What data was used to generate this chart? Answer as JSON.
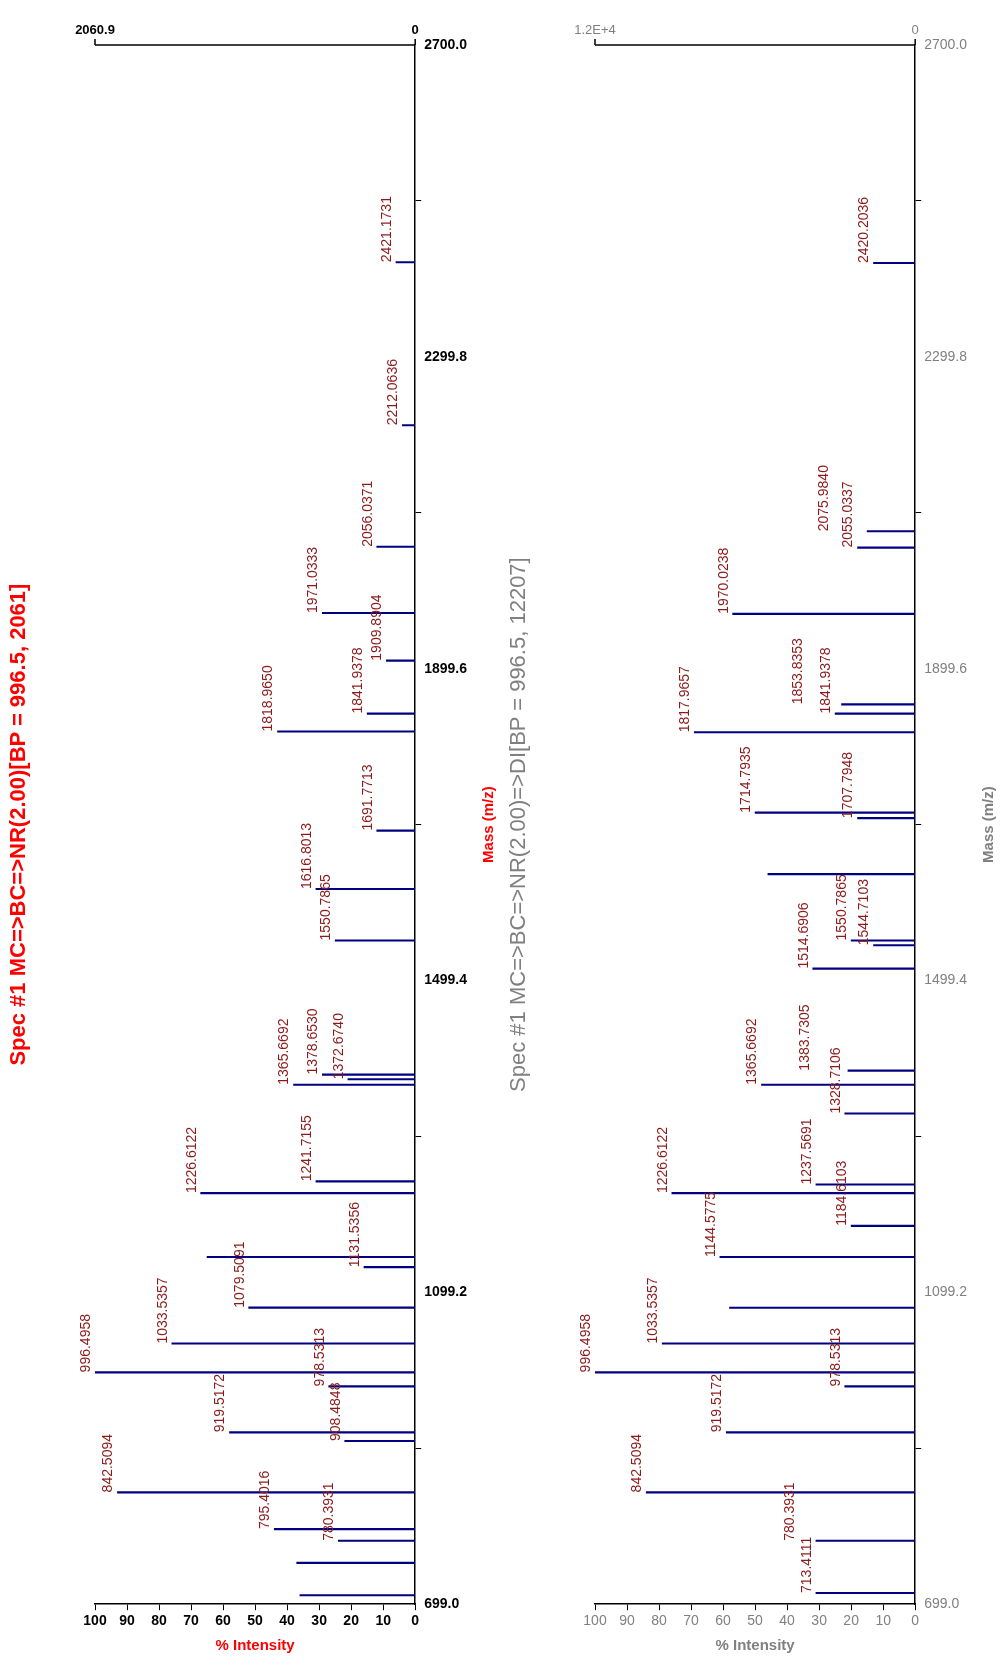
{
  "chart_data": [
    {
      "type": "bar",
      "orientation": "horizontal",
      "title": "Spec #1 MC=>BC=>NR(2.00)[BP = 996.5, 2061]",
      "xlabel": "% Intensity",
      "ylabel": "Mass (m/z)",
      "x": [
        710.5,
        752,
        780.3931,
        795.4016,
        842.5094,
        908.4848,
        919.5172,
        978.5313,
        996.4958,
        1033.5357,
        1079.5091,
        1131.5356,
        1144.6,
        1226.6122,
        1241.7155,
        1365.6692,
        1372.674,
        1378.653,
        1550.7865,
        1616.8013,
        1691.7713,
        1818.965,
        1841.9378,
        1909.8904,
        1971.0333,
        2056.0371,
        2212.0636,
        2421.1731
      ],
      "values": [
        36,
        37,
        24,
        44,
        93,
        22,
        58,
        27,
        100,
        76,
        52,
        16,
        65,
        67,
        31,
        38,
        21,
        29,
        25,
        31,
        12,
        43,
        15,
        9,
        29,
        12,
        4,
        6
      ],
      "color": "#000080",
      "annotations": [
        {
          "text": "780.3931",
          "x": 24,
          "y": 780.3931
        },
        {
          "text": "795.4016",
          "x": 44,
          "y": 795.4016
        },
        {
          "text": "842.5094",
          "x": 93,
          "y": 842.5094
        },
        {
          "text": "908.4848",
          "x": 22,
          "y": 908.4848
        },
        {
          "text": "919.5172",
          "x": 58,
          "y": 919.5172
        },
        {
          "text": "978.5313",
          "x": 27,
          "y": 978.5313
        },
        {
          "text": "996.4958",
          "x": 100,
          "y": 996.4958
        },
        {
          "text": "1033.5357",
          "x": 76,
          "y": 1033.5357
        },
        {
          "text": "1079.5091",
          "x": 52,
          "y": 1079.5091
        },
        {
          "text": "1131.5356",
          "x": 16,
          "y": 1131.5356
        },
        {
          "text": "1226.6122",
          "x": 67,
          "y": 1226.6122
        },
        {
          "text": "1241.7155",
          "x": 31,
          "y": 1241.7155
        },
        {
          "text": "1365.6692",
          "x": 38,
          "y": 1365.6692
        },
        {
          "text": "1372.6740",
          "x": 21,
          "y": 1372.674
        },
        {
          "text": "1378.6530",
          "x": 29,
          "y": 1378.653
        },
        {
          "text": "1550.7865",
          "x": 25,
          "y": 1550.7865
        },
        {
          "text": "1616.8013",
          "x": 31,
          "y": 1616.8013
        },
        {
          "text": "1691.7713",
          "x": 12,
          "y": 1691.7713
        },
        {
          "text": "1818.9650",
          "x": 43,
          "y": 1818.965
        },
        {
          "text": "1841.9378",
          "x": 15,
          "y": 1841.9378
        },
        {
          "text": "1909.8904",
          "x": 9,
          "y": 1909.8904
        },
        {
          "text": "1971.0333",
          "x": 29,
          "y": 1971.0333
        },
        {
          "text": "2056.0371",
          "x": 12,
          "y": 2056.0371
        },
        {
          "text": "2212.0636",
          "x": 4,
          "y": 2212.0636
        },
        {
          "text": "2421.1731",
          "x": 6,
          "y": 2421.1731
        }
      ],
      "xlim": [
        100,
        0
      ],
      "xticks": [
        0,
        10,
        20,
        30,
        40,
        50,
        60,
        70,
        80,
        90,
        100
      ],
      "ylim": [
        699,
        2700
      ],
      "yticks": [
        {
          "value": 699,
          "label": "699.0"
        },
        {
          "value": 1099.2,
          "label": "1099.2"
        },
        {
          "value": 1499.4,
          "label": "1499.4"
        },
        {
          "value": 1899.6,
          "label": "1899.6"
        },
        {
          "value": 2299.8,
          "label": "2299.8"
        },
        {
          "value": 2700,
          "label": "2700.0"
        }
      ],
      "x2lim": [
        2060.9,
        0
      ],
      "x2ticks": [
        {
          "value": 2060.9,
          "label": "2060.9"
        },
        0
      ],
      "grid": false,
      "legend": false
    },
    {
      "type": "bar",
      "orientation": "horizontal",
      "title": "Spec #1 MC=>BC=>NR(2.00)=>DI[BP = 996.5, 12207]",
      "xlabel": "% Intensity",
      "ylabel": "Mass (m/z)",
      "x": [
        713.4111,
        780.3931,
        842.5094,
        919.5172,
        978.5313,
        996.4958,
        1033.5357,
        1079.5,
        1144.5775,
        1184.6103,
        1226.6122,
        1237.5691,
        1328.7106,
        1365.6692,
        1383.7305,
        1514.6906,
        1544.7103,
        1550.7865,
        1636,
        1707.7948,
        1714.7935,
        1817.9657,
        1841.9378,
        1853.8353,
        1970.0238,
        2055.0337,
        2075.984,
        2420.2036
      ],
      "values": [
        31,
        31,
        84,
        59,
        22,
        100,
        79,
        58,
        61,
        20,
        76,
        31,
        22,
        48,
        21,
        32,
        13,
        20,
        46,
        18,
        50,
        69,
        25,
        23,
        57,
        18,
        15,
        13
      ],
      "color": "#000080",
      "annotations": [
        {
          "text": "713.4111",
          "x": 31,
          "y": 713.4111
        },
        {
          "text": "780.3931",
          "x": 31,
          "y": 780.3931
        },
        {
          "text": "842.5094",
          "x": 84,
          "y": 842.5094
        },
        {
          "text": "919.5172",
          "x": 59,
          "y": 919.5172
        },
        {
          "text": "978.5313",
          "x": 22,
          "y": 978.5313
        },
        {
          "text": "996.4958",
          "x": 100,
          "y": 996.4958
        },
        {
          "text": "1033.5357",
          "x": 79,
          "y": 1033.5357
        },
        {
          "text": "1144.5775",
          "x": 61,
          "y": 1144.5775
        },
        {
          "text": "1184.6103",
          "x": 20,
          "y": 1184.6103
        },
        {
          "text": "1226.6122",
          "x": 76,
          "y": 1226.6122
        },
        {
          "text": "1237.5691",
          "x": 31,
          "y": 1237.5691
        },
        {
          "text": "1328.7106",
          "x": 22,
          "y": 1328.7106
        },
        {
          "text": "1365.6692",
          "x": 48,
          "y": 1365.6692
        },
        {
          "text": "1383.7305",
          "x": 21,
          "y": 1383.7305
        },
        {
          "text": "1514.6906",
          "x": 32,
          "y": 1514.6906
        },
        {
          "text": "1544.7103",
          "x": 13,
          "y": 1544.7103
        },
        {
          "text": "1550.7865",
          "x": 20,
          "y": 1550.7865
        },
        {
          "text": "1707.7948",
          "x": 18,
          "y": 1707.7948
        },
        {
          "text": "1714.7935",
          "x": 50,
          "y": 1714.7935
        },
        {
          "text": "1817.9657",
          "x": 69,
          "y": 1817.9657
        },
        {
          "text": "1841.9378",
          "x": 25,
          "y": 1841.9378
        },
        {
          "text": "1853.8353",
          "x": 23,
          "y": 1853.8353
        },
        {
          "text": "1970.0238",
          "x": 57,
          "y": 1970.0238
        },
        {
          "text": "2055.0337",
          "x": 18,
          "y": 2055.0337
        },
        {
          "text": "2075.9840",
          "x": 15,
          "y": 2075.984
        },
        {
          "text": "2420.2036",
          "x": 13,
          "y": 2420.2036
        }
      ],
      "xlim": [
        100,
        0
      ],
      "xticks": [
        0,
        10,
        20,
        30,
        40,
        50,
        60,
        70,
        80,
        90,
        100
      ],
      "ylim": [
        699,
        2700
      ],
      "yticks": [
        {
          "value": 699,
          "label": "699.0"
        },
        {
          "value": 1099.2,
          "label": "1099.2"
        },
        {
          "value": 1499.4,
          "label": "1499.4"
        },
        {
          "value": 1899.6,
          "label": "1899.6"
        },
        {
          "value": 2299.8,
          "label": "2299.8"
        },
        {
          "value": 2700,
          "label": "2700.0"
        }
      ],
      "x2lim": [
        12207,
        0
      ],
      "x2ticks": [
        {
          "value": 12207,
          "label": "1.2E+4"
        },
        0
      ],
      "grid": false,
      "legend": false
    }
  ]
}
